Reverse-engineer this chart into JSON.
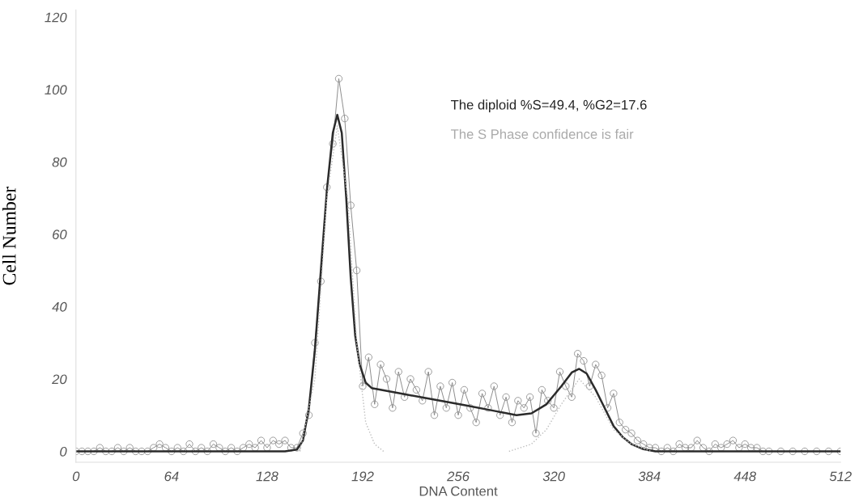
{
  "chart_data": {
    "type": "line",
    "xlabel": "DNA Content",
    "ylabel": "Cell Number",
    "annotations": [
      "The diploid %S=49.4, %G2=17.6",
      "The S Phase confidence is fair"
    ],
    "xlim": [
      0,
      512
    ],
    "ylim": [
      -3,
      122
    ],
    "xticks": [
      0,
      64,
      128,
      192,
      256,
      320,
      384,
      448,
      512
    ],
    "yticks": [
      0,
      20,
      40,
      60,
      80,
      100,
      120
    ],
    "grid": false,
    "legend": false,
    "series": [
      {
        "color": "#8a8a8a",
        "marker": "circle",
        "line_style": "solid",
        "x": [
          0,
          4,
          8,
          12,
          16,
          20,
          24,
          28,
          32,
          36,
          40,
          44,
          48,
          52,
          56,
          60,
          64,
          68,
          72,
          76,
          80,
          84,
          88,
          92,
          96,
          100,
          104,
          108,
          112,
          116,
          120,
          124,
          128,
          132,
          136,
          140,
          144,
          148,
          152,
          156,
          160,
          164,
          168,
          172,
          176,
          180,
          184,
          188,
          192,
          196,
          200,
          204,
          208,
          212,
          216,
          220,
          224,
          228,
          232,
          236,
          240,
          244,
          248,
          252,
          256,
          260,
          264,
          268,
          272,
          276,
          280,
          284,
          288,
          292,
          296,
          300,
          304,
          308,
          312,
          316,
          320,
          324,
          328,
          332,
          336,
          340,
          344,
          348,
          352,
          356,
          360,
          364,
          368,
          372,
          376,
          380,
          384,
          388,
          392,
          396,
          400,
          404,
          408,
          412,
          416,
          420,
          424,
          428,
          432,
          436,
          440,
          444,
          448,
          452,
          456,
          460,
          464,
          472,
          480,
          488,
          496,
          504,
          512
        ],
        "values": [
          0,
          0,
          0,
          0,
          1,
          0,
          0,
          1,
          0,
          1,
          0,
          0,
          0,
          1,
          2,
          1,
          0,
          1,
          0,
          2,
          0,
          1,
          0,
          2,
          1,
          0,
          1,
          0,
          1,
          2,
          1,
          3,
          1,
          3,
          2,
          3,
          1,
          1,
          5,
          10,
          30,
          47,
          73,
          85,
          103,
          92,
          68,
          50,
          18,
          26,
          13,
          24,
          20,
          12,
          22,
          15,
          20,
          17,
          14,
          22,
          10,
          18,
          12,
          19,
          10,
          17,
          12,
          8,
          16,
          12,
          18,
          10,
          15,
          8,
          14,
          12,
          15,
          5,
          17,
          14,
          12,
          22,
          18,
          15,
          27,
          25,
          18,
          24,
          21,
          12,
          16,
          8,
          6,
          5,
          3,
          2,
          1,
          1,
          0,
          1,
          0,
          2,
          1,
          1,
          3,
          1,
          0,
          2,
          1,
          2,
          3,
          1,
          2,
          1,
          1,
          0,
          0,
          0,
          0,
          0,
          0,
          0,
          0
        ]
      },
      {
        "color": "#2b2b2b",
        "marker": "none",
        "line_style": "solid",
        "x": [
          0,
          140,
          148,
          152,
          156,
          160,
          164,
          168,
          172,
          175,
          178,
          181,
          184,
          187,
          190,
          194,
          198,
          220,
          240,
          260,
          280,
          295,
          305,
          315,
          325,
          332,
          337,
          342,
          348,
          354,
          360,
          366,
          372,
          380,
          388,
          512
        ],
        "values": [
          0,
          0,
          0.5,
          3,
          12,
          28,
          50,
          72,
          88,
          93,
          88,
          70,
          48,
          32,
          24,
          19,
          17.5,
          15.8,
          14.3,
          12.8,
          11.2,
          10,
          10.5,
          13,
          18,
          21.8,
          22.8,
          21.5,
          17,
          12,
          7,
          4,
          2,
          0.6,
          0,
          0
        ]
      },
      {
        "color": "#bdbdbd",
        "marker": "none",
        "line_style": "dotted",
        "x": [
          150,
          160,
          168,
          175,
          182,
          188,
          194,
          200,
          206
        ],
        "values": [
          0,
          20,
          70,
          90,
          70,
          30,
          8,
          2,
          0
        ]
      },
      {
        "color": "#bdbdbd",
        "marker": "none",
        "line_style": "dotted",
        "x": [
          290,
          305,
          315,
          325,
          337,
          348,
          360,
          372,
          385
        ],
        "values": [
          0,
          2,
          6,
          13,
          20,
          15,
          6,
          2,
          0
        ]
      }
    ]
  }
}
